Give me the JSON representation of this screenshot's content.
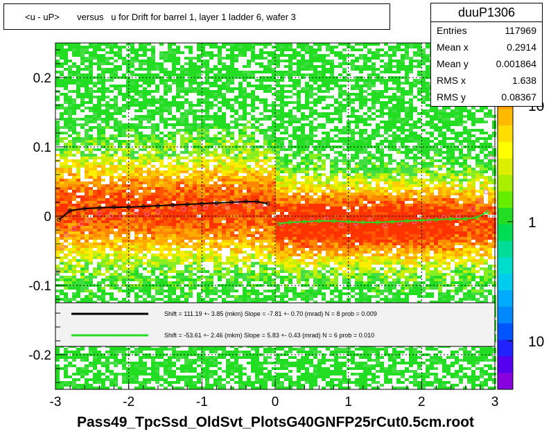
{
  "title": "<u - uP>       versus   u for Drift for barrel 1, layer 1 ladder 6, wafer 3",
  "stats": {
    "name": "duuP1306",
    "rows": [
      {
        "label": "Entries",
        "value": "117969"
      },
      {
        "label": "Mean x",
        "value": "0.2914"
      },
      {
        "label": "Mean y",
        "value": "0.001864"
      },
      {
        "label": "RMS x",
        "value": "1.638"
      },
      {
        "label": "RMS y",
        "value": "0.08367"
      }
    ]
  },
  "xlabel": "Pass49_TpcSsd_OldSvt_PlotsG40GNFP25rCut0.5cm.root",
  "colors": {
    "fit_black": "#000000",
    "fit_green": "#22dd22",
    "points_pink": "#ff66aa",
    "dense": "#ff3300",
    "medium": "#ffaa00",
    "sparse": "#44dd44"
  },
  "chart_data": {
    "type": "heatmap",
    "title": "<u - uP>       versus   u for Drift for barrel 1, layer 1 ladder 6, wafer 3",
    "xlabel": "Pass49_TpcSsd_OldSvt_PlotsG40GNFP25rCut0.5cm.root",
    "ylabel": "",
    "xlim": [
      -3,
      3
    ],
    "ylim": [
      -0.25,
      0.25
    ],
    "x_ticks": [
      "-3",
      "-2",
      "-1",
      "0",
      "1",
      "2",
      "3"
    ],
    "y_ticks": [
      "-0.2",
      "-0.1",
      "0",
      "0.1",
      "0.2"
    ],
    "y_tick_values": [
      -0.2,
      -0.1,
      0,
      0.1,
      0.2
    ],
    "z_scale": "log",
    "z_ticks": [
      "10",
      "1",
      "10"
    ],
    "z_tick_values": [
      10,
      1,
      0.1
    ],
    "grid": true,
    "legend": [
      {
        "label": "Shift =   111.19 +- 3.85 (mkm) Slope =    -7.81 +- 0.70 (mrad)  N = 8 prob = 0.009",
        "color": "#000000"
      },
      {
        "label": "Shift =   -53.61 +- 2.46 (mkm) Slope =    5.83 +- 0.43 (mrad)  N = 6 prob = 0.010",
        "color": "#22dd22"
      }
    ],
    "profile_left": {
      "x": [
        -2.95,
        -2.8,
        -2.6,
        -2.4,
        -2.2,
        -2.0,
        -1.8,
        -1.6,
        -1.4,
        -1.2,
        -1.0,
        -0.8,
        -0.6,
        -0.4,
        -0.25,
        -0.1
      ],
      "y": [
        -0.005,
        0.008,
        0.011,
        0.012,
        0.013,
        0.013,
        0.014,
        0.015,
        0.016,
        0.017,
        0.018,
        0.019,
        0.02,
        0.021,
        0.021,
        0.018
      ]
    },
    "profile_right": {
      "x": [
        0.05,
        0.2,
        0.4,
        0.6,
        0.8,
        1.0,
        1.2,
        1.4,
        1.6,
        1.8,
        2.0,
        2.2,
        2.4,
        2.6,
        2.75,
        2.9
      ],
      "y": [
        -0.011,
        -0.009,
        -0.008,
        -0.007,
        -0.007,
        -0.008,
        -0.009,
        -0.009,
        -0.008,
        -0.007,
        -0.006,
        -0.005,
        -0.004,
        -0.004,
        -0.002,
        0.006
      ]
    },
    "scatter_points": {
      "x": [
        -2.97,
        -2.9,
        -2.85,
        -2.75,
        -2.65,
        -2.55,
        -2.4,
        -2.25,
        -2.1,
        -1.9,
        -1.75,
        -1.6,
        -1.4,
        -1.25,
        -1.1,
        -0.95,
        -0.8,
        -0.65,
        -0.5,
        -0.35,
        -0.2,
        0.1,
        0.3,
        0.5,
        0.7,
        0.9,
        1.1,
        1.3,
        1.5,
        1.7,
        1.9,
        2.1,
        2.3,
        2.5,
        2.7,
        2.8,
        2.88,
        2.95
      ],
      "y": [
        -0.08,
        -0.045,
        -0.027,
        -0.018,
        -0.011,
        -0.006,
        0.004,
        0.001,
        0.0,
        0.005,
        0.003,
        0.006,
        0.012,
        0.01,
        0.015,
        0.013,
        0.017,
        0.012,
        0.02,
        0.016,
        0.014,
        -0.012,
        -0.008,
        -0.006,
        -0.004,
        -0.013,
        -0.01,
        -0.006,
        -0.014,
        -0.01,
        -0.008,
        -0.006,
        -0.002,
        0.0,
        0.01,
        0.022,
        0.035,
        0.085
      ]
    }
  }
}
